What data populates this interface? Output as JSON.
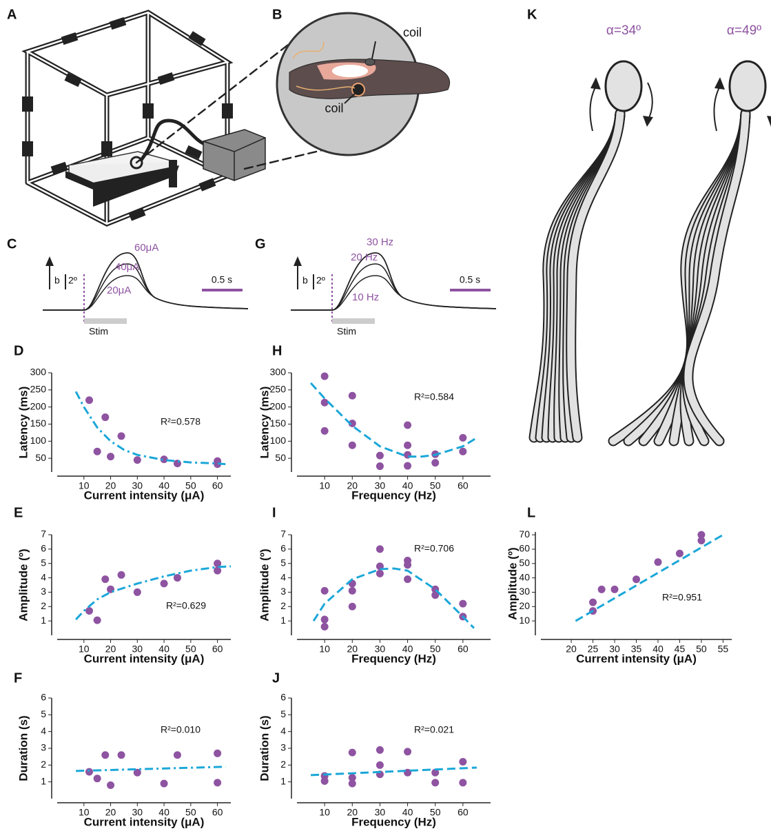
{
  "setup": {
    "panel": "A"
  },
  "magnified": {
    "panel": "B",
    "coil_labels": [
      "coil",
      "coil"
    ]
  },
  "traces": [
    {
      "panel": "C",
      "labels": [
        "60μA",
        "40μA",
        "20μA"
      ],
      "direction": "b",
      "scale": "2º",
      "time": "0.5 s",
      "stim": "Stim"
    },
    {
      "panel": "G",
      "labels": [
        "30 Hz",
        "20 Hz",
        "10 Hz"
      ],
      "direction": "b",
      "scale": "2º",
      "time": "0.5 s",
      "stim": "Stim"
    }
  ],
  "swimming": {
    "panel": "K",
    "angles": [
      "α=34º",
      "α=49º"
    ]
  },
  "chart_data": [
    {
      "type": "scatter",
      "panel": "D",
      "xlabel": "Current intensity (μA)",
      "ylabel": "Latency (ms)",
      "annotation": "R²=0.578",
      "xlim": [
        0,
        65
      ],
      "ylim": [
        10,
        300
      ],
      "xticks": [
        10,
        20,
        30,
        40,
        50,
        60
      ],
      "yticks": [
        50,
        100,
        150,
        200,
        250,
        300
      ],
      "series": [
        {
          "type": "scatter",
          "color": "#8e53a1",
          "x": [
            12,
            15,
            18,
            20,
            24,
            30,
            40,
            45,
            60,
            60
          ],
          "values": [
            220,
            70,
            170,
            55,
            115,
            45,
            47,
            35,
            42,
            33
          ]
        },
        {
          "type": "line",
          "style": "dash-dot",
          "color": "#1ba7d8",
          "x": [
            7,
            10,
            15,
            20,
            25,
            30,
            40,
            50,
            60,
            63
          ],
          "values": [
            245,
            200,
            140,
            100,
            75,
            60,
            45,
            38,
            35,
            33
          ]
        }
      ]
    },
    {
      "type": "scatter",
      "panel": "E",
      "xlabel": "Current intensity (μA)",
      "ylabel": "Amplitude (º)",
      "annotation": "R²=0.629",
      "xlim": [
        0,
        65
      ],
      "ylim": [
        0,
        7
      ],
      "xticks": [
        10,
        20,
        30,
        40,
        50,
        60
      ],
      "yticks": [
        1,
        2,
        3,
        4,
        5,
        6,
        7
      ],
      "series": [
        {
          "type": "scatter",
          "color": "#8e53a1",
          "x": [
            12,
            15,
            18,
            20,
            24,
            30,
            40,
            45,
            60,
            60
          ],
          "values": [
            1.7,
            1.05,
            3.9,
            3.2,
            4.2,
            3.0,
            3.6,
            4.0,
            5.0,
            4.5
          ]
        },
        {
          "type": "line",
          "style": "dash-dot",
          "color": "#1ba7d8",
          "x": [
            7,
            10,
            15,
            20,
            30,
            40,
            50,
            60,
            65
          ],
          "values": [
            1.1,
            1.7,
            2.5,
            3.0,
            3.6,
            4.1,
            4.5,
            4.75,
            4.8
          ]
        }
      ]
    },
    {
      "type": "scatter",
      "panel": "F",
      "xlabel": "Current intensity (μA)",
      "ylabel": "Duration (s)",
      "annotation": "R²=0.010",
      "xlim": [
        0,
        65
      ],
      "ylim": [
        0,
        6
      ],
      "xticks": [
        10,
        20,
        30,
        40,
        50,
        60
      ],
      "yticks": [
        1,
        2,
        3,
        4,
        5,
        6
      ],
      "series": [
        {
          "type": "scatter",
          "color": "#8e53a1",
          "x": [
            12,
            15,
            18,
            20,
            24,
            30,
            40,
            45,
            60,
            60
          ],
          "values": [
            1.6,
            1.2,
            2.6,
            0.8,
            2.6,
            1.55,
            0.9,
            2.6,
            2.7,
            0.95
          ]
        },
        {
          "type": "line",
          "style": "dash-dot",
          "color": "#1ba7d8",
          "x": [
            7,
            63
          ],
          "values": [
            1.65,
            1.9
          ]
        }
      ]
    },
    {
      "type": "scatter",
      "panel": "H",
      "xlabel": "Frequency (Hz)",
      "ylabel": "Latency (ms)",
      "annotation": "R²=0.584",
      "xlim": [
        0,
        70
      ],
      "ylim": [
        10,
        300
      ],
      "xticks": [
        10,
        20,
        30,
        40,
        50,
        60
      ],
      "yticks": [
        50,
        100,
        150,
        200,
        250,
        300
      ],
      "series": [
        {
          "type": "scatter",
          "color": "#8e53a1",
          "x": [
            10,
            10,
            10,
            20,
            20,
            20,
            30,
            30,
            40,
            40,
            40,
            40,
            50,
            50,
            60,
            60
          ],
          "values": [
            290,
            213,
            130,
            233,
            152,
            88,
            58,
            27,
            147,
            88,
            60,
            28,
            62,
            37,
            110,
            70
          ]
        },
        {
          "type": "line",
          "style": "dashed",
          "color": "#1ba7d8",
          "x": [
            5,
            10,
            20,
            30,
            40,
            45,
            50,
            60,
            65
          ],
          "values": [
            270,
            225,
            145,
            85,
            55,
            55,
            60,
            85,
            110
          ]
        }
      ]
    },
    {
      "type": "scatter",
      "panel": "I",
      "xlabel": "Frequency (Hz)",
      "ylabel": "Amplitude (º)",
      "annotation": "R²=0.706",
      "xlim": [
        0,
        70
      ],
      "ylim": [
        0,
        7
      ],
      "xticks": [
        10,
        20,
        30,
        40,
        50,
        60
      ],
      "yticks": [
        1,
        2,
        3,
        4,
        5,
        6,
        7
      ],
      "series": [
        {
          "type": "scatter",
          "color": "#8e53a1",
          "x": [
            10,
            10,
            10,
            20,
            20,
            20,
            30,
            30,
            30,
            40,
            40,
            40,
            50,
            50,
            60,
            60
          ],
          "values": [
            3.1,
            1.1,
            0.6,
            3.6,
            3.1,
            2.0,
            6.0,
            4.8,
            4.3,
            5.2,
            4.9,
            3.9,
            3.2,
            2.8,
            2.2,
            1.3
          ]
        },
        {
          "type": "line",
          "style": "dashed",
          "color": "#1ba7d8",
          "x": [
            6,
            10,
            20,
            30,
            35,
            40,
            50,
            60,
            64
          ],
          "values": [
            1.0,
            2.2,
            3.9,
            4.6,
            4.65,
            4.5,
            3.2,
            1.3,
            0.5
          ]
        }
      ]
    },
    {
      "type": "scatter",
      "panel": "J",
      "xlabel": "Frequency (Hz)",
      "ylabel": "Duration (s)",
      "annotation": "R²=0.021",
      "xlim": [
        0,
        70
      ],
      "ylim": [
        0,
        6
      ],
      "xticks": [
        10,
        20,
        30,
        40,
        50,
        60
      ],
      "yticks": [
        1,
        2,
        3,
        4,
        5,
        6
      ],
      "series": [
        {
          "type": "scatter",
          "color": "#8e53a1",
          "x": [
            10,
            10,
            20,
            20,
            20,
            30,
            30,
            30,
            40,
            40,
            50,
            50,
            60,
            60
          ],
          "values": [
            1.35,
            1.05,
            2.75,
            1.25,
            0.9,
            2.9,
            2.0,
            1.45,
            2.8,
            1.55,
            1.55,
            0.95,
            2.2,
            0.95
          ]
        },
        {
          "type": "line",
          "style": "dashed",
          "color": "#1ba7d8",
          "x": [
            5,
            65
          ],
          "values": [
            1.4,
            1.85
          ]
        }
      ]
    },
    {
      "type": "scatter",
      "panel": "L",
      "xlabel": "Current intensity (μA)",
      "ylabel": "Amplitude (º)",
      "annotation": "R²=0.951",
      "xlim": [
        13,
        57
      ],
      "ylim": [
        0,
        72
      ],
      "xticks": [
        20,
        25,
        30,
        35,
        40,
        45,
        50,
        55
      ],
      "yticks": [
        10,
        20,
        30,
        40,
        50,
        60,
        70
      ],
      "series": [
        {
          "type": "scatter",
          "color": "#8e53a1",
          "x": [
            25,
            25,
            27,
            30,
            35,
            40,
            45,
            50,
            50
          ],
          "values": [
            23,
            17,
            32,
            32,
            39,
            51,
            57,
            70,
            66
          ]
        },
        {
          "type": "line",
          "style": "dashed",
          "color": "#1ba7d8",
          "x": [
            21,
            55
          ],
          "values": [
            10,
            70
          ]
        }
      ]
    }
  ]
}
